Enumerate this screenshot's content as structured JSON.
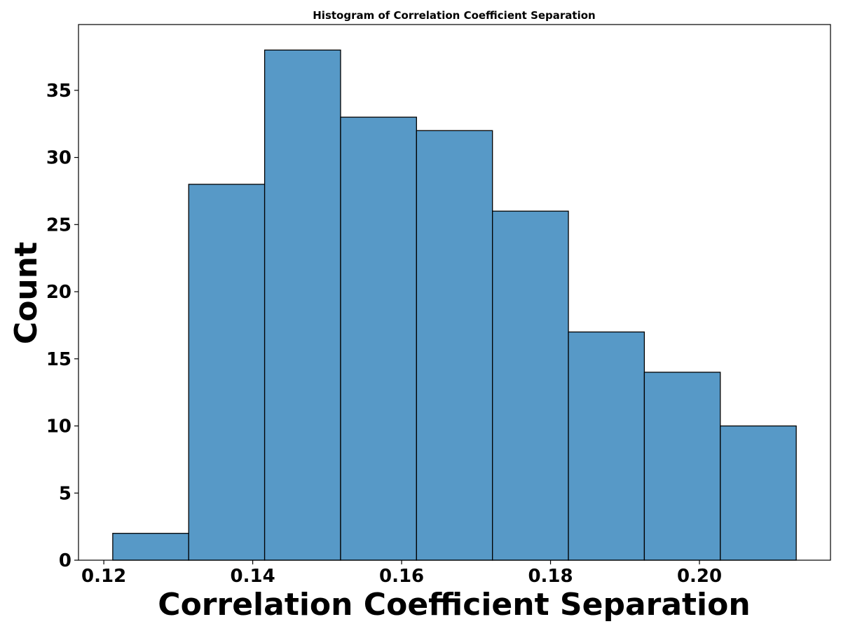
{
  "chart_data": {
    "type": "bar",
    "title": "Histogram of Correlation Coefficient Separation",
    "xlabel": "Correlation Coefficient Separation",
    "ylabel": "Count",
    "bins": [
      {
        "x0": 0.1212,
        "x1": 0.1314,
        "count": 2
      },
      {
        "x0": 0.1314,
        "x1": 0.1416,
        "count": 28
      },
      {
        "x0": 0.1416,
        "x1": 0.1518,
        "count": 38
      },
      {
        "x0": 0.1518,
        "x1": 0.162,
        "count": 33
      },
      {
        "x0": 0.162,
        "x1": 0.1722,
        "count": 32
      },
      {
        "x0": 0.1722,
        "x1": 0.1824,
        "count": 26
      },
      {
        "x0": 0.1824,
        "x1": 0.1926,
        "count": 17
      },
      {
        "x0": 0.1926,
        "x1": 0.2028,
        "count": 14
      },
      {
        "x0": 0.2028,
        "x1": 0.213,
        "count": 10
      }
    ],
    "xlim": [
      0.1166,
      0.2176
    ],
    "ylim": [
      0,
      39.9
    ],
    "xticks": [
      0.12,
      0.14,
      0.16,
      0.18,
      0.2
    ],
    "xtick_labels": [
      "0.12",
      "0.14",
      "0.16",
      "0.18",
      "0.20"
    ],
    "yticks": [
      0,
      5,
      10,
      15,
      20,
      25,
      30,
      35
    ],
    "ytick_labels": [
      "0",
      "5",
      "10",
      "15",
      "20",
      "25",
      "30",
      "35"
    ],
    "grid": false,
    "colors": {
      "bar_fill": "#5799c7",
      "bar_edge": "#000000",
      "axes": "#000000"
    }
  }
}
